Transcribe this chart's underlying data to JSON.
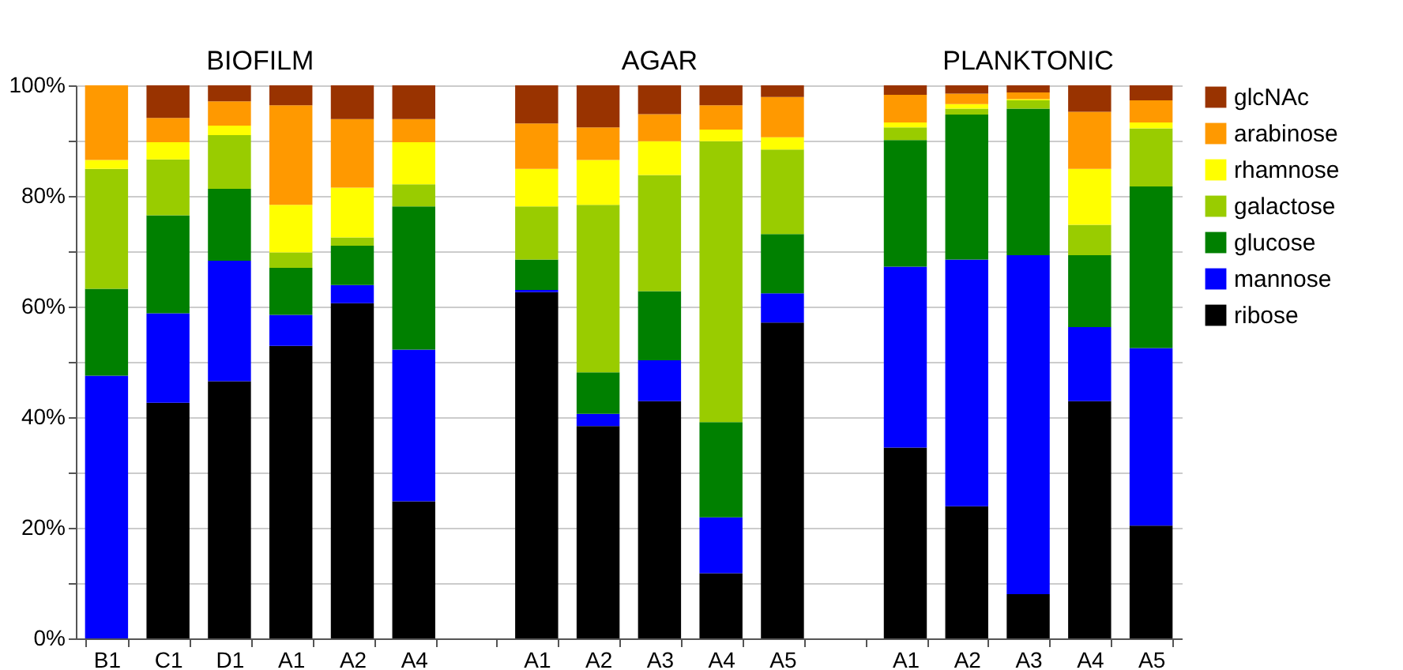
{
  "chart_data": {
    "type": "bar",
    "stacked": true,
    "annotations": [
      "BIOFILM",
      "AGAR",
      "PLANKTONIC"
    ],
    "categories": [
      "B1",
      "C1",
      "D1",
      "A1",
      "A2",
      "A4",
      null,
      "A1",
      "A2",
      "A3",
      "A4",
      "A5",
      null,
      "A1",
      "A2",
      "A3",
      "A4",
      "A5"
    ],
    "series": [
      {
        "name": "ribose",
        "color": "#000000",
        "values": [
          0,
          42.6,
          46.5,
          52.9,
          60.6,
          24.8,
          null,
          62.6,
          38.4,
          42.9,
          11.8,
          57.1,
          null,
          34.5,
          23.9,
          8.0,
          42.9,
          20.4
        ]
      },
      {
        "name": "mannose",
        "color": "#0000ff",
        "values": [
          47.5,
          16.2,
          21.8,
          5.6,
          3.3,
          27.4,
          null,
          0.4,
          2.2,
          7.4,
          10.1,
          5.3,
          null,
          32.7,
          44.6,
          61.3,
          13.4,
          32.1
        ]
      },
      {
        "name": "glucose",
        "color": "#008000",
        "values": [
          15.7,
          17.7,
          13.0,
          8.5,
          7.1,
          25.9,
          null,
          5.5,
          7.5,
          12.5,
          17.2,
          10.7,
          null,
          22.9,
          26.2,
          26.5,
          13.0,
          29.2
        ]
      },
      {
        "name": "galactose",
        "color": "#99cc00",
        "values": [
          21.7,
          10.1,
          9.7,
          2.8,
          1.5,
          4.0,
          null,
          9.6,
          30.3,
          21.0,
          50.8,
          15.3,
          null,
          2.3,
          1.1,
          1.5,
          5.5,
          10.5
        ]
      },
      {
        "name": "rhamnose",
        "color": "#ffff00",
        "values": [
          1.6,
          3.1,
          1.7,
          8.6,
          9.0,
          7.6,
          null,
          6.8,
          8.1,
          6.1,
          2.1,
          2.2,
          null,
          0.9,
          0.8,
          0.2,
          10.1,
          1.1
        ]
      },
      {
        "name": "arabinose",
        "color": "#ff9900",
        "values": [
          13.5,
          4.4,
          4.4,
          18.0,
          12.4,
          4.2,
          null,
          8.2,
          5.9,
          4.9,
          4.4,
          7.3,
          null,
          5.0,
          1.9,
          1.2,
          10.3,
          4.0
        ]
      },
      {
        "name": "glcNAc",
        "color": "#993300",
        "values": [
          0,
          5.9,
          2.9,
          3.6,
          6.1,
          6.1,
          null,
          6.9,
          7.6,
          5.2,
          3.6,
          2.1,
          null,
          1.7,
          1.5,
          1.3,
          4.8,
          2.7
        ]
      }
    ],
    "ylim": [
      0,
      100
    ],
    "yticks": [
      {
        "value": 0,
        "label": "0%"
      },
      {
        "value": 10,
        "label": null
      },
      {
        "value": 20,
        "label": "20%"
      },
      {
        "value": 30,
        "label": null
      },
      {
        "value": 40,
        "label": "40%"
      },
      {
        "value": 50,
        "label": null
      },
      {
        "value": 60,
        "label": "60%"
      },
      {
        "value": 70,
        "label": null
      },
      {
        "value": 80,
        "label": "80%"
      },
      {
        "value": 90,
        "label": null
      },
      {
        "value": 100,
        "label": "100%"
      }
    ],
    "grid": "y",
    "legend": "right"
  }
}
